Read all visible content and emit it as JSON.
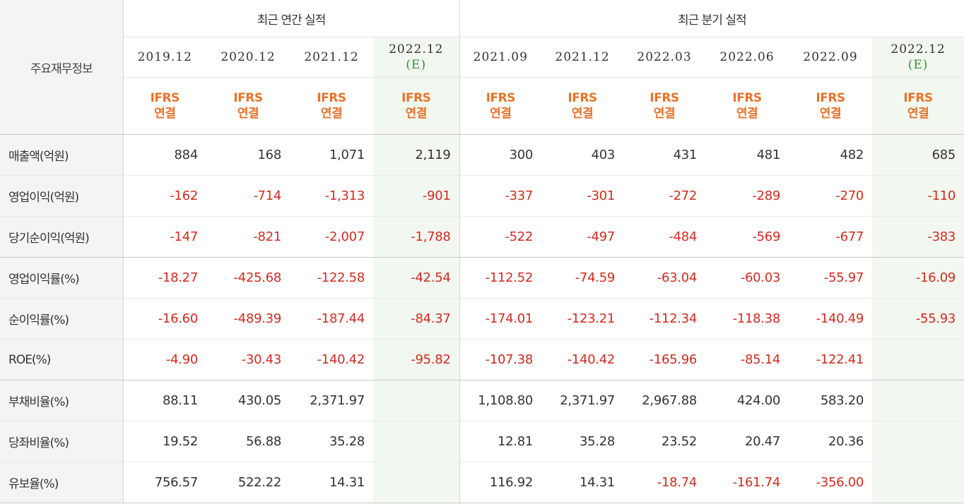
{
  "header": {
    "side_label": "주요재무정보",
    "annual_label": "최근 연간 실적",
    "quarterly_label": "최근 분기 실적",
    "periods": [
      {
        "date": "2019.12",
        "est": "",
        "ifrs1": "IFRS",
        "ifrs2": "연결"
      },
      {
        "date": "2020.12",
        "est": "",
        "ifrs1": "IFRS",
        "ifrs2": "연결"
      },
      {
        "date": "2021.12",
        "est": "",
        "ifrs1": "IFRS",
        "ifrs2": "연결"
      },
      {
        "date": "2022.12",
        "est": "(E)",
        "ifrs1": "IFRS",
        "ifrs2": "연결"
      },
      {
        "date": "2021.09",
        "est": "",
        "ifrs1": "IFRS",
        "ifrs2": "연결"
      },
      {
        "date": "2021.12",
        "est": "",
        "ifrs1": "IFRS",
        "ifrs2": "연결"
      },
      {
        "date": "2022.03",
        "est": "",
        "ifrs1": "IFRS",
        "ifrs2": "연결"
      },
      {
        "date": "2022.06",
        "est": "",
        "ifrs1": "IFRS",
        "ifrs2": "연결"
      },
      {
        "date": "2022.09",
        "est": "",
        "ifrs1": "IFRS",
        "ifrs2": "연결"
      },
      {
        "date": "2022.12",
        "est": "(E)",
        "ifrs1": "IFRS",
        "ifrs2": "연결"
      }
    ]
  },
  "rows": [
    {
      "label": "매출액(억원)",
      "values": [
        "884",
        "168",
        "1,071",
        "2,119",
        "300",
        "403",
        "431",
        "481",
        "482",
        "685"
      ]
    },
    {
      "label": "영업이익(억원)",
      "values": [
        "-162",
        "-714",
        "-1,313",
        "-901",
        "-337",
        "-301",
        "-272",
        "-289",
        "-270",
        "-110"
      ]
    },
    {
      "label": "당기순이익(억원)",
      "values": [
        "-147",
        "-821",
        "-2,007",
        "-1,788",
        "-522",
        "-497",
        "-484",
        "-569",
        "-677",
        "-383"
      ]
    },
    {
      "label": "영업이익률(%)",
      "values": [
        "-18.27",
        "-425.68",
        "-122.58",
        "-42.54",
        "-112.52",
        "-74.59",
        "-63.04",
        "-60.03",
        "-55.97",
        "-16.09"
      ]
    },
    {
      "label": "순이익률(%)",
      "values": [
        "-16.60",
        "-489.39",
        "-187.44",
        "-84.37",
        "-174.01",
        "-123.21",
        "-112.34",
        "-118.38",
        "-140.49",
        "-55.93"
      ]
    },
    {
      "label": "ROE(%)",
      "values": [
        "-4.90",
        "-30.43",
        "-140.42",
        "-95.82",
        "-107.38",
        "-140.42",
        "-165.96",
        "-85.14",
        "-122.41",
        ""
      ]
    },
    {
      "label": "부채비율(%)",
      "values": [
        "88.11",
        "430.05",
        "2,371.97",
        "",
        "1,108.80",
        "2,371.97",
        "2,967.88",
        "424.00",
        "583.20",
        ""
      ]
    },
    {
      "label": "당좌비율(%)",
      "values": [
        "19.52",
        "56.88",
        "35.28",
        "",
        "12.81",
        "35.28",
        "23.52",
        "20.47",
        "20.36",
        ""
      ]
    },
    {
      "label": "유보율(%)",
      "values": [
        "756.57",
        "522.22",
        "14.31",
        "",
        "116.92",
        "14.31",
        "-18.74",
        "-161.74",
        "-356.00",
        ""
      ]
    }
  ],
  "colors": {
    "negative": "#d12b1f",
    "ifrs": "#e8732a",
    "estimate": "#3a8a3a",
    "estimate_bg": "#f2f8f0"
  }
}
